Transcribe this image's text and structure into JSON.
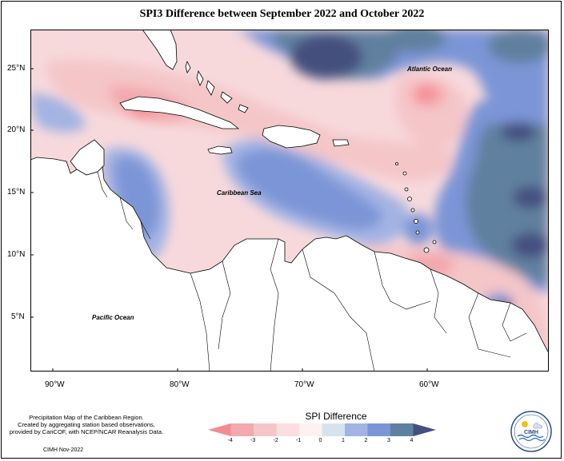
{
  "title": "SPI3 Difference between September 2022 and October 2022",
  "lat_labels": [
    "25°N",
    "20°N",
    "15°N",
    "10°N",
    "5°N"
  ],
  "lon_labels": [
    "90°W",
    "80°W",
    "70°W",
    "60°W"
  ],
  "place_labels": {
    "atlantic": "Atlantic Ocean",
    "caribbean": "Caribbean Sea",
    "pacific": "Pacific Ocean"
  },
  "credits": {
    "line1": "Precipitation Map of the Caribbean Region.",
    "line2": "Created by aggregating station based observations,",
    "line3": "provided by CariCOF, with NCEP/NCAR Reanalysis Data.",
    "date": "CIMH Nov-2022"
  },
  "colorbar": {
    "title": "SPI Difference",
    "ticks": [
      "-4",
      "-3",
      "-2",
      "-1",
      "0",
      "1",
      "2",
      "3",
      "4"
    ],
    "colors": [
      "#f48a92",
      "#f3a9ad",
      "#f4c6c8",
      "#f9dfe1",
      "#fdf1f1",
      "#d7e3ec",
      "#a3b3e3",
      "#7b95d6",
      "#60809f",
      "#45507e"
    ]
  },
  "logo": {
    "text": "CIMH"
  }
}
